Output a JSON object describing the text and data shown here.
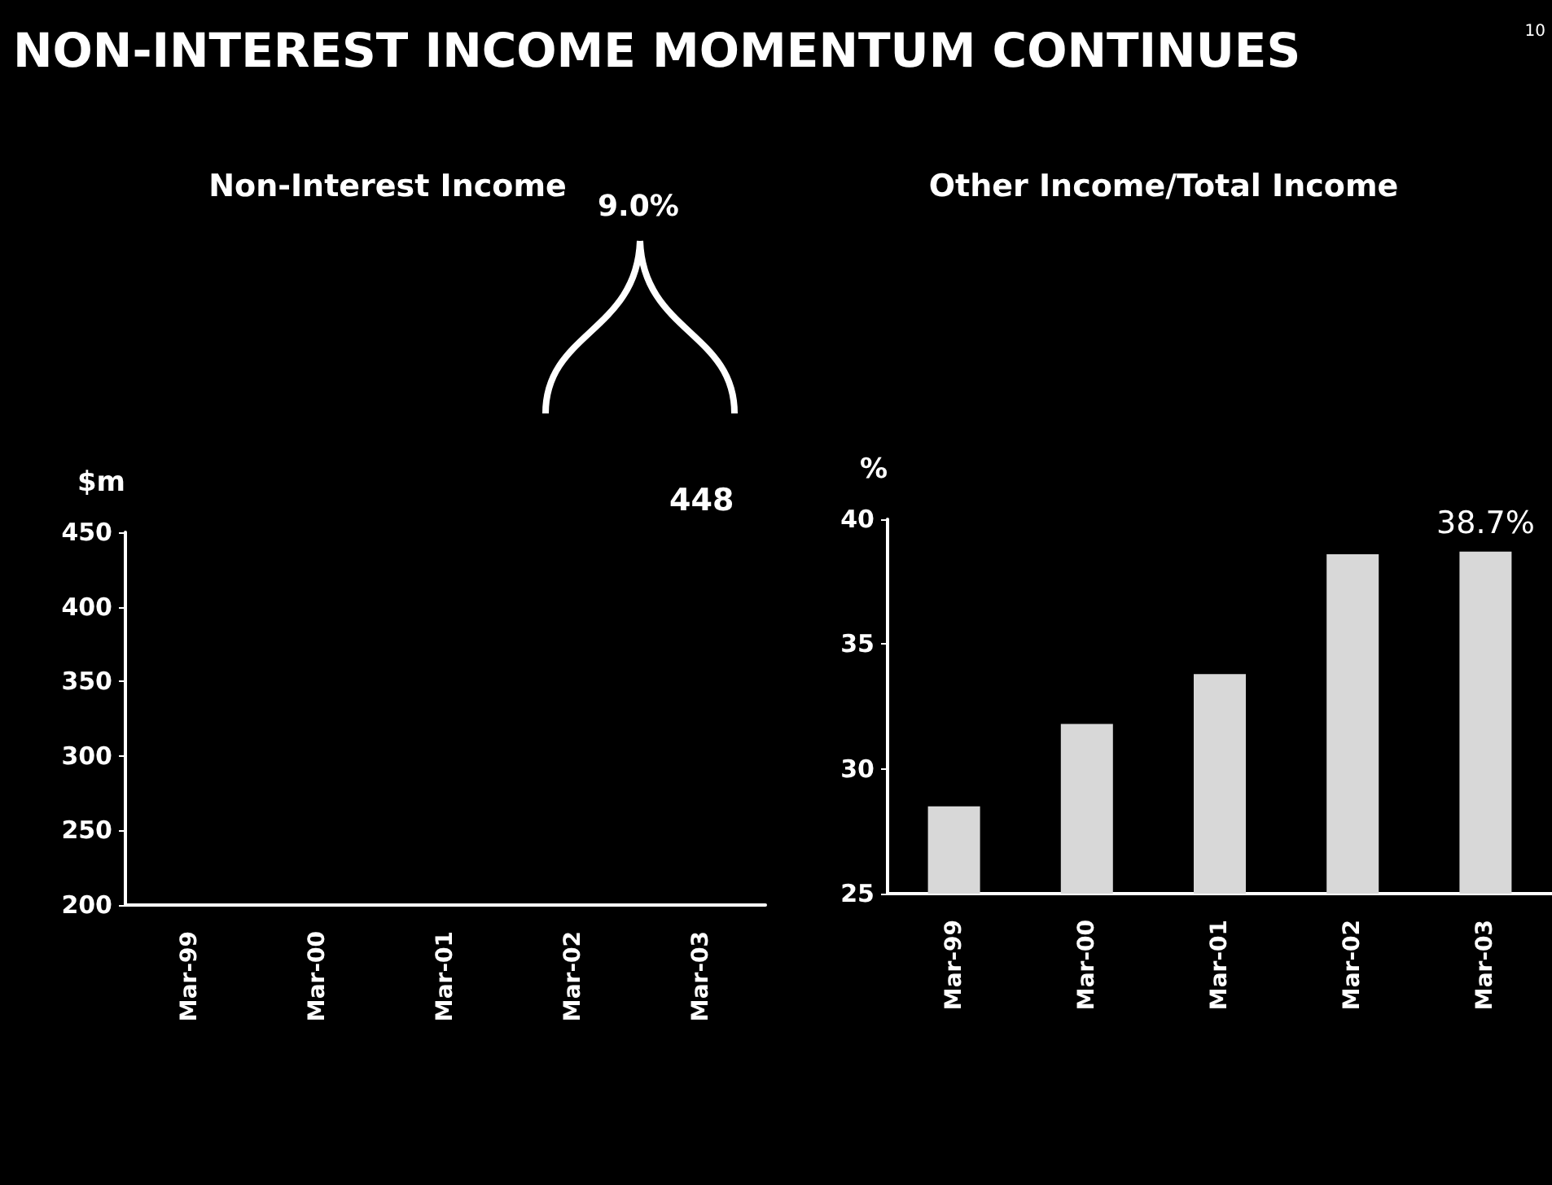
{
  "chart_data": [
    {
      "type": "bar",
      "title": "Non-Interest Income",
      "ylabel": "$m",
      "categories": [
        "Mar-99",
        "Mar-00",
        "Mar-01",
        "Mar-02",
        "Mar-03"
      ],
      "values": [
        null,
        null,
        null,
        null,
        null
      ],
      "color": "#000000",
      "ylim": [
        200,
        450
      ],
      "yticks": [
        200,
        250,
        300,
        350,
        400,
        450
      ],
      "grid": false,
      "annotations": [
        "NON-INTEREST INCOME MOMENTUM CONTINUES",
        "10",
        "9.0%",
        "448"
      ]
    },
    {
      "type": "bar",
      "title": "Other Income/Total Income",
      "ylabel": "%",
      "categories": [
        "Mar-99",
        "Mar-00",
        "Mar-01",
        "Mar-02",
        "Mar-03"
      ],
      "values": [
        28.5,
        31.8,
        33.8,
        38.6,
        38.7
      ],
      "value_labels": [
        null,
        null,
        null,
        null,
        "38.7%"
      ],
      "color": "#d8d8d8",
      "ylim": [
        25,
        40
      ],
      "yticks": [
        25,
        30,
        35,
        40
      ],
      "grid": false
    }
  ]
}
